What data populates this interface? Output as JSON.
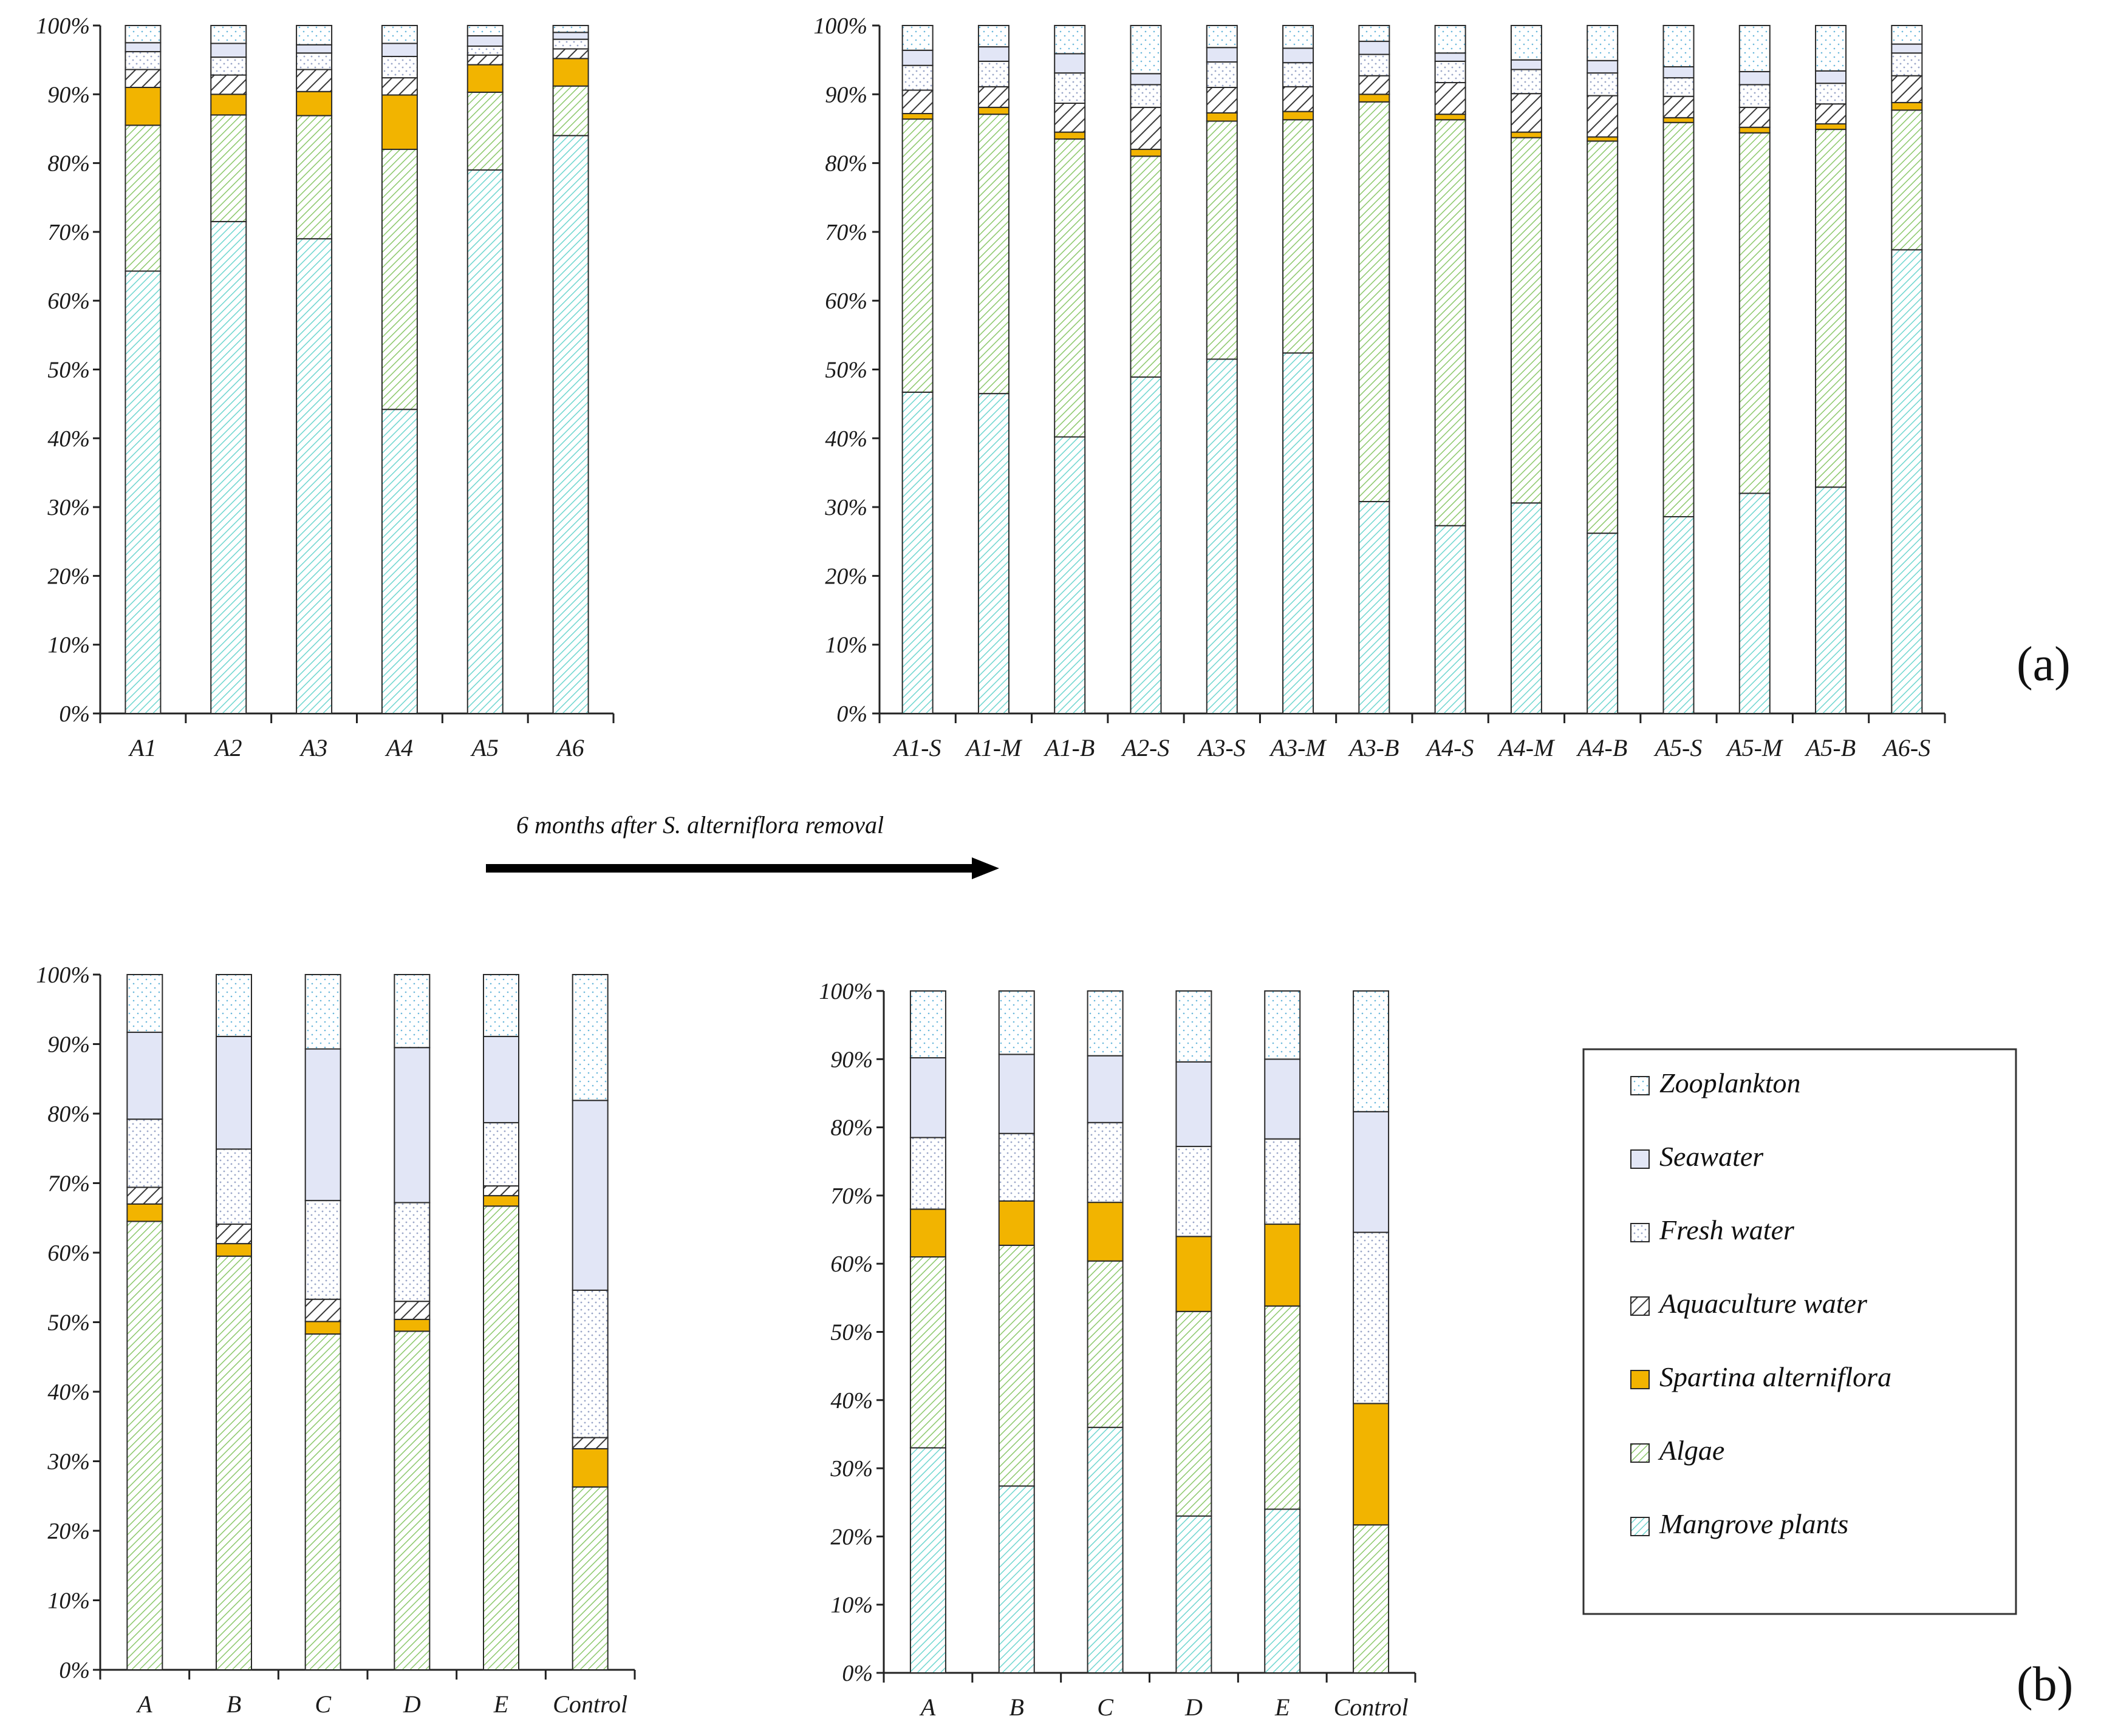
{
  "figure": {
    "arrow_text": "6 months after S. alterniflora removal",
    "panel_labels": [
      "(a)",
      "(b)"
    ]
  },
  "legend": {
    "items": [
      {
        "key": "zoo",
        "label": "Zooplankton"
      },
      {
        "key": "sea",
        "label": "Seawater"
      },
      {
        "key": "fresh",
        "label": "Fresh water"
      },
      {
        "key": "aqua",
        "label": "Aquaculture water"
      },
      {
        "key": "spart",
        "label": "Spartina alterniflora"
      },
      {
        "key": "algae",
        "label": "Algae"
      },
      {
        "key": "mang",
        "label": "Mangrove plants"
      }
    ]
  },
  "colors": {
    "mang": "#6fd6d0",
    "algae": "#8cc86c",
    "spart": "#f2b400",
    "aqua": "#3a3a3a",
    "fresh": "#9aa6c8",
    "sea": "#e2e6f6",
    "zoo": "#6bb8dc"
  },
  "chart_data": [
    {
      "type": "bar",
      "stacked": true,
      "panel": "a-left",
      "title": "",
      "categories": [
        "A1",
        "A2",
        "A3",
        "A4",
        "A5",
        "A6"
      ],
      "yticks": [
        "0%",
        "10%",
        "20%",
        "30%",
        "40%",
        "50%",
        "60%",
        "70%",
        "80%",
        "90%",
        "100%"
      ],
      "ylim": [
        0,
        100
      ],
      "series": [
        {
          "name": "Mangrove plants",
          "key": "mang",
          "values": [
            64.3,
            71.5,
            69.0,
            44.2,
            79.0,
            84.0
          ]
        },
        {
          "name": "Algae",
          "key": "algae",
          "values": [
            21.2,
            15.5,
            17.9,
            37.8,
            11.3,
            7.2
          ]
        },
        {
          "name": "Spartina alterniflora",
          "key": "spart",
          "values": [
            5.5,
            3.0,
            3.5,
            7.9,
            4.0,
            4.0
          ]
        },
        {
          "name": "Aquaculture water",
          "key": "aqua",
          "values": [
            2.6,
            2.8,
            3.2,
            2.5,
            1.4,
            1.4
          ]
        },
        {
          "name": "Fresh water",
          "key": "fresh",
          "values": [
            2.6,
            2.6,
            2.4,
            3.1,
            1.3,
            1.4
          ]
        },
        {
          "name": "Seawater",
          "key": "sea",
          "values": [
            1.3,
            2.0,
            1.2,
            1.9,
            1.5,
            1.0
          ]
        },
        {
          "name": "Zooplankton",
          "key": "zoo",
          "values": [
            2.5,
            2.6,
            2.8,
            2.6,
            1.5,
            1.0
          ]
        }
      ]
    },
    {
      "type": "bar",
      "stacked": true,
      "panel": "a-right",
      "title": "",
      "categories": [
        "A1-S",
        "A1-M",
        "A1-B",
        "A2-S",
        "A3-S",
        "A3-M",
        "A3-B",
        "A4-S",
        "A4-M",
        "A4-B",
        "A5-S",
        "A5-M",
        "A5-B",
        "A6-S"
      ],
      "yticks": [
        "0%",
        "10%",
        "20%",
        "30%",
        "40%",
        "50%",
        "60%",
        "70%",
        "80%",
        "90%",
        "100%"
      ],
      "ylim": [
        0,
        100
      ],
      "series": [
        {
          "name": "Mangrove plants",
          "key": "mang",
          "values": [
            46.7,
            46.5,
            40.2,
            48.9,
            51.5,
            52.4,
            30.8,
            27.3,
            30.6,
            26.2,
            28.6,
            32.0,
            32.9,
            67.4
          ]
        },
        {
          "name": "Algae",
          "key": "algae",
          "values": [
            39.7,
            40.6,
            43.3,
            32.1,
            34.6,
            33.9,
            58.1,
            59.0,
            53.1,
            57.0,
            57.3,
            52.4,
            52.0,
            20.3
          ]
        },
        {
          "name": "Spartina alterniflora",
          "key": "spart",
          "values": [
            0.8,
            1.0,
            1.0,
            1.0,
            1.2,
            1.2,
            1.1,
            0.8,
            0.8,
            0.6,
            0.7,
            0.8,
            0.8,
            1.1
          ]
        },
        {
          "name": "Aquaculture water",
          "key": "aqua",
          "values": [
            3.4,
            3.0,
            4.2,
            6.1,
            3.7,
            3.6,
            2.7,
            4.6,
            5.6,
            6.0,
            3.1,
            2.9,
            2.9,
            3.9
          ]
        },
        {
          "name": "Fresh water",
          "key": "fresh",
          "values": [
            3.6,
            3.7,
            4.4,
            3.3,
            3.7,
            3.5,
            3.1,
            3.1,
            3.5,
            3.3,
            2.7,
            3.3,
            3.0,
            3.3
          ]
        },
        {
          "name": "Seawater",
          "key": "sea",
          "values": [
            2.2,
            2.1,
            2.8,
            1.6,
            2.1,
            2.1,
            1.9,
            1.2,
            1.4,
            1.8,
            1.6,
            1.9,
            1.8,
            1.3
          ]
        },
        {
          "name": "Zooplankton",
          "key": "zoo",
          "values": [
            3.6,
            3.1,
            4.1,
            7.0,
            3.2,
            3.3,
            2.3,
            4.0,
            5.0,
            5.1,
            6.0,
            6.7,
            6.6,
            2.7
          ]
        }
      ]
    },
    {
      "type": "bar",
      "stacked": true,
      "panel": "b-left",
      "title": "",
      "categories": [
        "A",
        "B",
        "C",
        "D",
        "E",
        "Control"
      ],
      "yticks": [
        "0%",
        "10%",
        "20%",
        "30%",
        "40%",
        "50%",
        "60%",
        "70%",
        "80%",
        "90%",
        "100%"
      ],
      "ylim": [
        0,
        100
      ],
      "series": [
        {
          "name": "Mangrove plants",
          "key": "mang",
          "values": [
            0,
            0,
            0,
            0,
            0,
            0
          ]
        },
        {
          "name": "Algae",
          "key": "algae",
          "values": [
            64.5,
            59.5,
            48.3,
            48.7,
            66.7,
            26.3
          ]
        },
        {
          "name": "Spartina alterniflora",
          "key": "spart",
          "values": [
            2.5,
            1.8,
            1.8,
            1.7,
            1.5,
            5.5
          ]
        },
        {
          "name": "Aquaculture water",
          "key": "aqua",
          "values": [
            2.4,
            2.8,
            3.2,
            2.6,
            1.4,
            1.6
          ]
        },
        {
          "name": "Fresh water",
          "key": "fresh",
          "values": [
            9.8,
            10.8,
            14.2,
            14.2,
            9.1,
            21.2
          ]
        },
        {
          "name": "Seawater",
          "key": "sea",
          "values": [
            12.5,
            16.2,
            21.8,
            22.3,
            12.4,
            27.3
          ]
        },
        {
          "name": "Zooplankton",
          "key": "zoo",
          "values": [
            8.3,
            8.9,
            10.7,
            10.5,
            8.9,
            18.1
          ]
        }
      ]
    },
    {
      "type": "bar",
      "stacked": true,
      "panel": "b-right",
      "title": "",
      "categories": [
        "A",
        "B",
        "C",
        "D",
        "E",
        "Control"
      ],
      "yticks": [
        "0%",
        "10%",
        "20%",
        "30%",
        "40%",
        "50%",
        "60%",
        "70%",
        "80%",
        "90%",
        "100%"
      ],
      "ylim": [
        0,
        100
      ],
      "series": [
        {
          "name": "Mangrove plants",
          "key": "mang",
          "values": [
            33.0,
            27.4,
            36.0,
            23.0,
            24.0,
            0
          ]
        },
        {
          "name": "Algae",
          "key": "algae",
          "values": [
            28.0,
            35.3,
            24.4,
            30.0,
            29.8,
            21.7
          ]
        },
        {
          "name": "Spartina alterniflora",
          "key": "spart",
          "values": [
            7.0,
            6.5,
            8.6,
            11.0,
            12.0,
            17.8
          ]
        },
        {
          "name": "Aquaculture water",
          "key": "aqua",
          "values": [
            0,
            0,
            0,
            0,
            0,
            0
          ]
        },
        {
          "name": "Fresh water",
          "key": "fresh",
          "values": [
            10.5,
            9.9,
            11.7,
            13.2,
            12.5,
            25.1
          ]
        },
        {
          "name": "Seawater",
          "key": "sea",
          "values": [
            11.7,
            11.6,
            9.8,
            12.4,
            11.7,
            17.7
          ]
        },
        {
          "name": "Zooplankton",
          "key": "zoo",
          "values": [
            9.8,
            9.3,
            9.5,
            10.4,
            10.0,
            17.7
          ]
        }
      ]
    }
  ]
}
